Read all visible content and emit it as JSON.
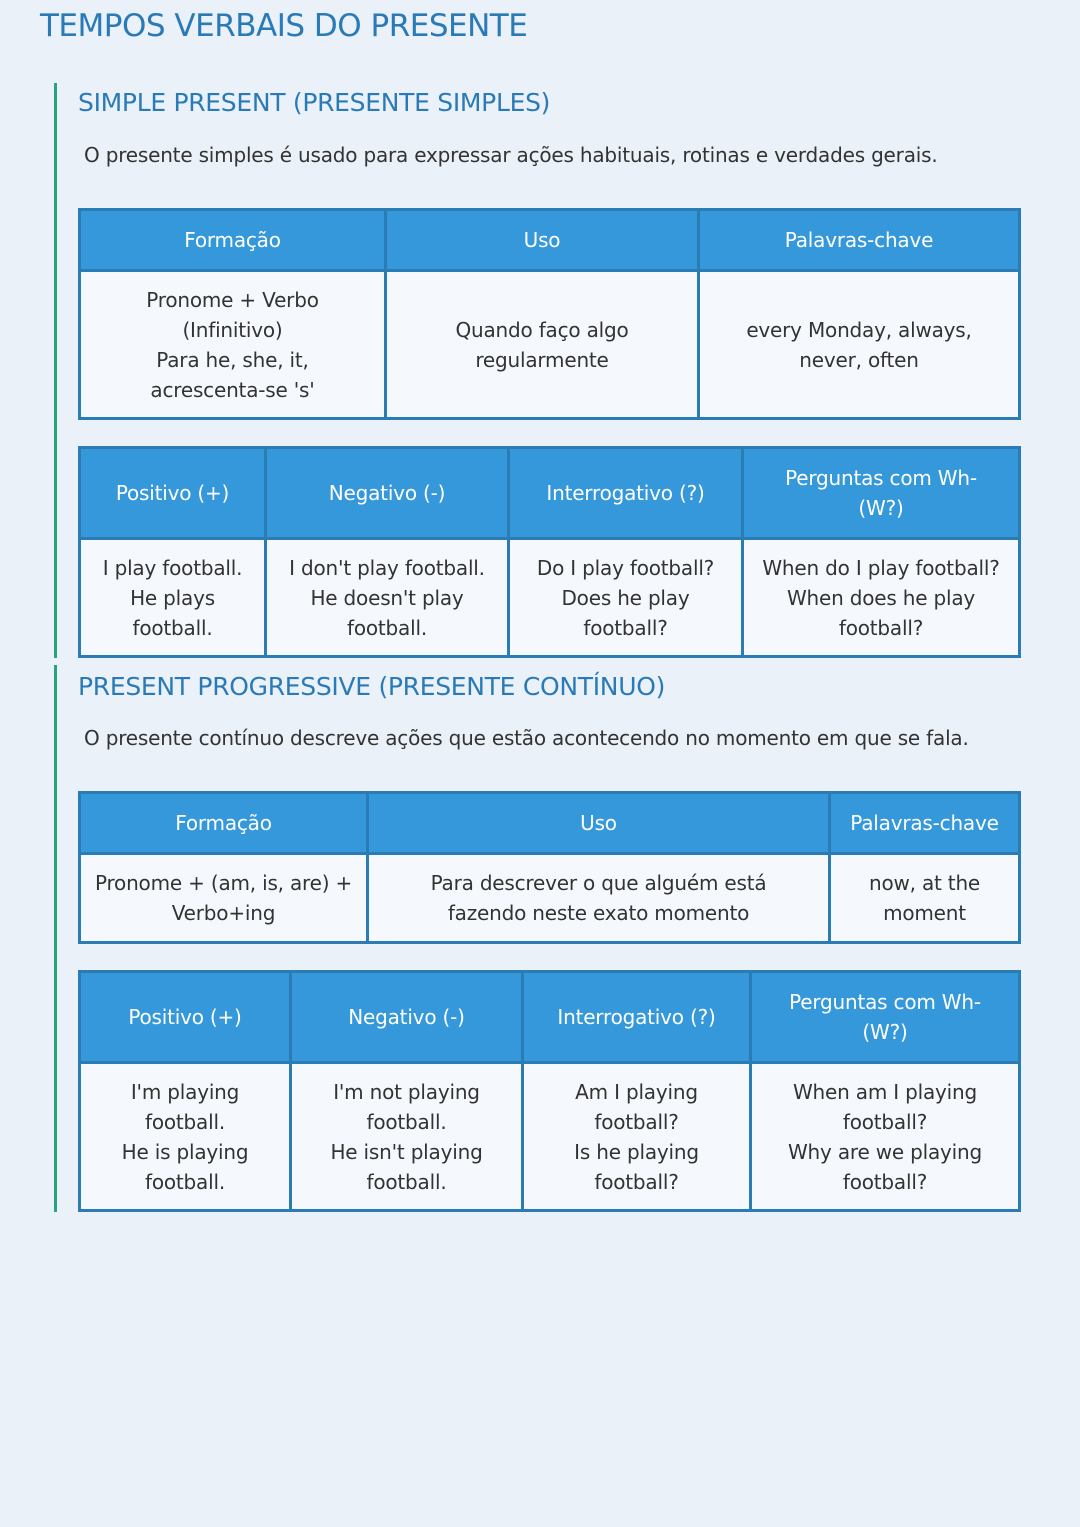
{
  "title": "TEMPOS VERBAIS DO PRESENTE",
  "colors": {
    "title": "#2a7ab8",
    "header_bg": "#3498db",
    "border": "#2b7bb5",
    "accent_line": "#2aa27e",
    "page_bg": "#eaf1f9"
  },
  "sections": [
    {
      "heading": "SIMPLE PRESENT (PRESENTE SIMPLES)",
      "description": "O presente simples é usado para expressar ações habituais, rotinas e verdades gerais.",
      "table1": {
        "headers": [
          "Formação",
          "Uso",
          "Palavras-chave"
        ],
        "row": [
          "Pronome + Verbo\n(Infinitivo)\nPara he, she, it,\nacrescenta-se 's'",
          "Quando faço algo\nregularmente",
          "every Monday, always,\nnever, often"
        ]
      },
      "table2": {
        "headers": [
          "Positivo (+)",
          "Negativo (-)",
          "Interrogativo (?)",
          "Perguntas com Wh-\n(W?)"
        ],
        "row": [
          "I play football.\nHe plays\nfootball.",
          "I don't play football.\nHe doesn't play\nfootball.",
          "Do I play football?\nDoes he play\nfootball?",
          "When do I play football?\nWhen does he play\nfootball?"
        ]
      }
    },
    {
      "heading": "PRESENT PROGRESSIVE (PRESENTE CONTÍNUO)",
      "description": "O presente contínuo descreve ações que estão acontecendo no momento em que se fala.",
      "table1": {
        "headers": [
          "Formação",
          "Uso",
          "Palavras-chave"
        ],
        "row": [
          "Pronome + (am, is, are) +\nVerbo+ing",
          "Para descrever o que alguém está\nfazendo neste exato momento",
          "now, at the\nmoment"
        ]
      },
      "table2": {
        "headers": [
          "Positivo (+)",
          "Negativo (-)",
          "Interrogativo (?)",
          "Perguntas com Wh-\n(W?)"
        ],
        "row": [
          "I'm playing\nfootball.\nHe is playing\nfootball.",
          "I'm not playing\nfootball.\nHe isn't playing\nfootball.",
          "Am I playing\nfootball?\nIs he playing\nfootball?",
          "When am I playing\nfootball?\nWhy are we playing\nfootball?"
        ]
      }
    }
  ]
}
